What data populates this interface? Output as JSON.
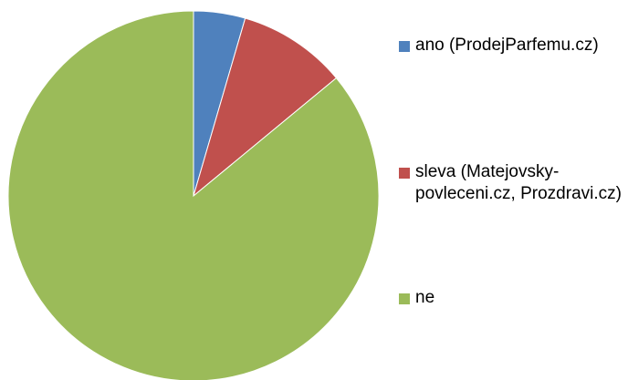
{
  "chart_data": {
    "type": "pie",
    "categories": [
      "ano (ProdejParfemu.cz)",
      "sleva (Matejovsky-povleceni.cz, Prozdravi.cz)",
      "ne"
    ],
    "values": [
      4.5,
      9.5,
      86
    ],
    "colors": [
      "#4f81bd",
      "#c0504d",
      "#9bbb59"
    ],
    "legend": "right"
  }
}
